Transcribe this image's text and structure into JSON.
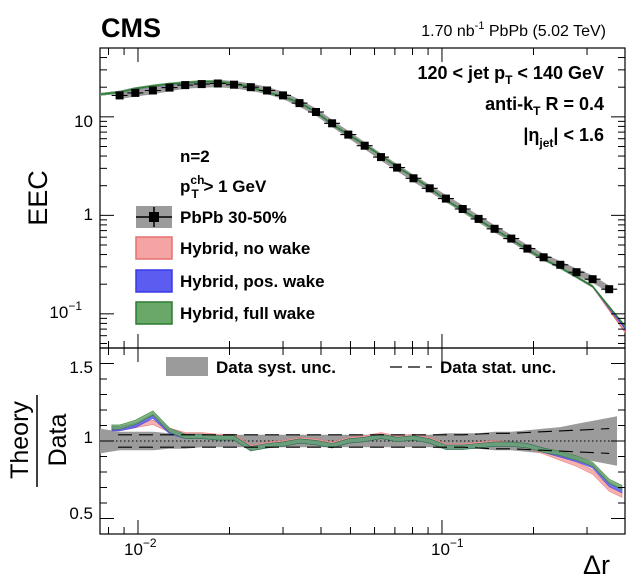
{
  "chart_data": [
    {
      "type": "line",
      "panel": "top",
      "experiment": "CMS",
      "luminosity_label": "1.70 nb",
      "luminosity_sup": "-1",
      "luminosity_rest": " PbPb (5.02 TeV)",
      "selection": [
        {
          "pre": "120 < jet p",
          "sub": "T",
          "post": " < 140 GeV"
        },
        {
          "pre": "anti-k",
          "sub": "T",
          "post": " R = 0.4"
        },
        {
          "pre": "|η",
          "sub": "jet",
          "post": "| < 1.6"
        }
      ],
      "legend_header": {
        "line1": "n=2",
        "line2_pre": "p",
        "line2_sup": "ch",
        "line2_sub": "T",
        "line2_post": " > 1 GeV"
      },
      "ylabel": "EEC",
      "xscale": "log",
      "yscale": "log",
      "xlim": [
        0.0075,
        0.4
      ],
      "ylim": [
        0.045,
        50
      ],
      "yticks": [
        {
          "v": 0.1,
          "base": "10",
          "sup": "−1"
        },
        {
          "v": 1,
          "label": "1"
        },
        {
          "v": 10,
          "label": "10"
        }
      ],
      "x": [
        0.0087,
        0.0098,
        0.0112,
        0.0127,
        0.0143,
        0.0162,
        0.0183,
        0.0207,
        0.0235,
        0.0266,
        0.03,
        0.034,
        0.0385,
        0.0435,
        0.0492,
        0.0557,
        0.063,
        0.0712,
        0.0806,
        0.0911,
        0.103,
        0.117,
        0.132,
        0.149,
        0.169,
        0.191,
        0.216,
        0.245,
        0.277,
        0.313,
        0.355
      ],
      "series": [
        {
          "name": "PbPb 30-50%",
          "kind": "data",
          "color": "#000000",
          "band": "#9b9b9b",
          "values": [
            16.5,
            17.5,
            18.5,
            19.8,
            21.0,
            21.5,
            21.8,
            21.2,
            20.0,
            18.5,
            16.5,
            13.8,
            11.2,
            8.6,
            6.6,
            5.1,
            3.9,
            3.05,
            2.38,
            1.88,
            1.48,
            1.16,
            0.92,
            0.73,
            0.58,
            0.46,
            0.375,
            0.315,
            0.265,
            0.225,
            0.178
          ]
        },
        {
          "name": "Hybrid, no wake",
          "kind": "model",
          "color": "#e8706f",
          "fill": "#f4a4a2",
          "values": [
            17.8,
            19.3,
            20.2,
            21.3,
            21.8,
            22.5,
            22.5,
            21.8,
            20.0,
            17.7,
            16.1,
            13.9,
            11.2,
            8.4,
            6.6,
            5.2,
            4.05,
            3.1,
            2.45,
            1.9,
            1.43,
            1.13,
            0.9,
            0.72,
            0.57,
            0.45,
            0.36,
            0.295,
            0.238,
            0.19,
            0.11
          ]
        },
        {
          "name": "Hybrid, pos. wake",
          "kind": "model",
          "color": "#3a3ae8",
          "fill": "#5c5cf0",
          "values": [
            17.8,
            19.3,
            20.4,
            21.4,
            22.0,
            22.7,
            22.6,
            21.8,
            20.0,
            17.7,
            16.1,
            13.9,
            11.2,
            8.4,
            6.6,
            5.2,
            4.05,
            3.1,
            2.45,
            1.9,
            1.43,
            1.13,
            0.9,
            0.72,
            0.57,
            0.45,
            0.36,
            0.295,
            0.238,
            0.19,
            0.115
          ]
        },
        {
          "name": "Hybrid, full wake",
          "kind": "model",
          "color": "#2e7a2e",
          "fill": "#6aa86a",
          "values": [
            17.8,
            19.3,
            20.6,
            21.6,
            22.2,
            22.8,
            22.7,
            21.8,
            20.0,
            17.7,
            16.1,
            13.9,
            11.2,
            8.4,
            6.6,
            5.2,
            4.05,
            3.1,
            2.45,
            1.9,
            1.43,
            1.13,
            0.9,
            0.72,
            0.57,
            0.45,
            0.36,
            0.295,
            0.238,
            0.19,
            0.118
          ]
        }
      ]
    },
    {
      "type": "line",
      "panel": "bottom",
      "ylabel_num": "Theory",
      "ylabel_den": "Data",
      "xlabel": "Δr",
      "xscale": "log",
      "xlim": [
        0.0075,
        0.4
      ],
      "ylim": [
        0.4,
        1.6
      ],
      "yticks": [
        {
          "v": 0.5,
          "label": "0.5"
        },
        {
          "v": 1,
          "label": "1"
        },
        {
          "v": 1.5,
          "label": "1.5"
        }
      ],
      "xticks": [
        {
          "v": 0.01,
          "base": "10",
          "sup": "−2"
        },
        {
          "v": 0.1,
          "base": "10",
          "sup": "−1"
        }
      ],
      "legend": {
        "syst": "Data syst. unc.",
        "stat": "Data stat. unc."
      },
      "syst_halfwidth": [
        0.06,
        0.06,
        0.06,
        0.05,
        0.05,
        0.04,
        0.04,
        0.04,
        0.04,
        0.04,
        0.04,
        0.04,
        0.04,
        0.04,
        0.04,
        0.04,
        0.04,
        0.04,
        0.04,
        0.04,
        0.05,
        0.05,
        0.05,
        0.06,
        0.06,
        0.07,
        0.08,
        0.09,
        0.11,
        0.13,
        0.15
      ],
      "stat_halfwidth": [
        0.04,
        0.04,
        0.04,
        0.04,
        0.04,
        0.04,
        0.04,
        0.04,
        0.04,
        0.04,
        0.04,
        0.04,
        0.04,
        0.04,
        0.04,
        0.04,
        0.04,
        0.04,
        0.04,
        0.04,
        0.04,
        0.04,
        0.045,
        0.05,
        0.05,
        0.055,
        0.06,
        0.065,
        0.07,
        0.075,
        0.08
      ],
      "series": [
        {
          "name": "Hybrid, no wake",
          "color": "#e8706f",
          "fill": "#f4a4a2",
          "values": [
            1.08,
            1.1,
            1.12,
            1.07,
            1.04,
            1.04,
            1.03,
            1.03,
            0.96,
            0.98,
            0.99,
            1.01,
            1.0,
            0.98,
            1.01,
            1.02,
            1.04,
            1.02,
            1.03,
            1.01,
            0.97,
            0.97,
            0.98,
            0.99,
            0.98,
            0.97,
            0.93,
            0.89,
            0.85,
            0.8,
            0.69
          ]
        },
        {
          "name": "Hybrid, pos. wake",
          "color": "#3a3ae8",
          "fill": "#5c5cf0",
          "values": [
            1.08,
            1.1,
            1.16,
            1.06,
            1.03,
            1.03,
            1.02,
            1.02,
            0.95,
            0.97,
            0.98,
            1.0,
            0.99,
            0.97,
            1.0,
            1.01,
            1.03,
            1.01,
            1.02,
            1.0,
            0.96,
            0.96,
            0.97,
            0.98,
            0.98,
            0.97,
            0.94,
            0.91,
            0.88,
            0.84,
            0.72
          ]
        },
        {
          "name": "Hybrid, full wake",
          "color": "#2e7a2e",
          "fill": "#6aa86a",
          "values": [
            1.09,
            1.12,
            1.18,
            1.07,
            1.03,
            1.03,
            1.02,
            1.02,
            0.95,
            0.97,
            0.98,
            1.0,
            0.99,
            0.97,
            1.0,
            1.01,
            1.03,
            1.01,
            1.02,
            1.0,
            0.96,
            0.96,
            0.97,
            0.98,
            0.98,
            0.97,
            0.94,
            0.92,
            0.89,
            0.85,
            0.74
          ]
        }
      ]
    }
  ]
}
